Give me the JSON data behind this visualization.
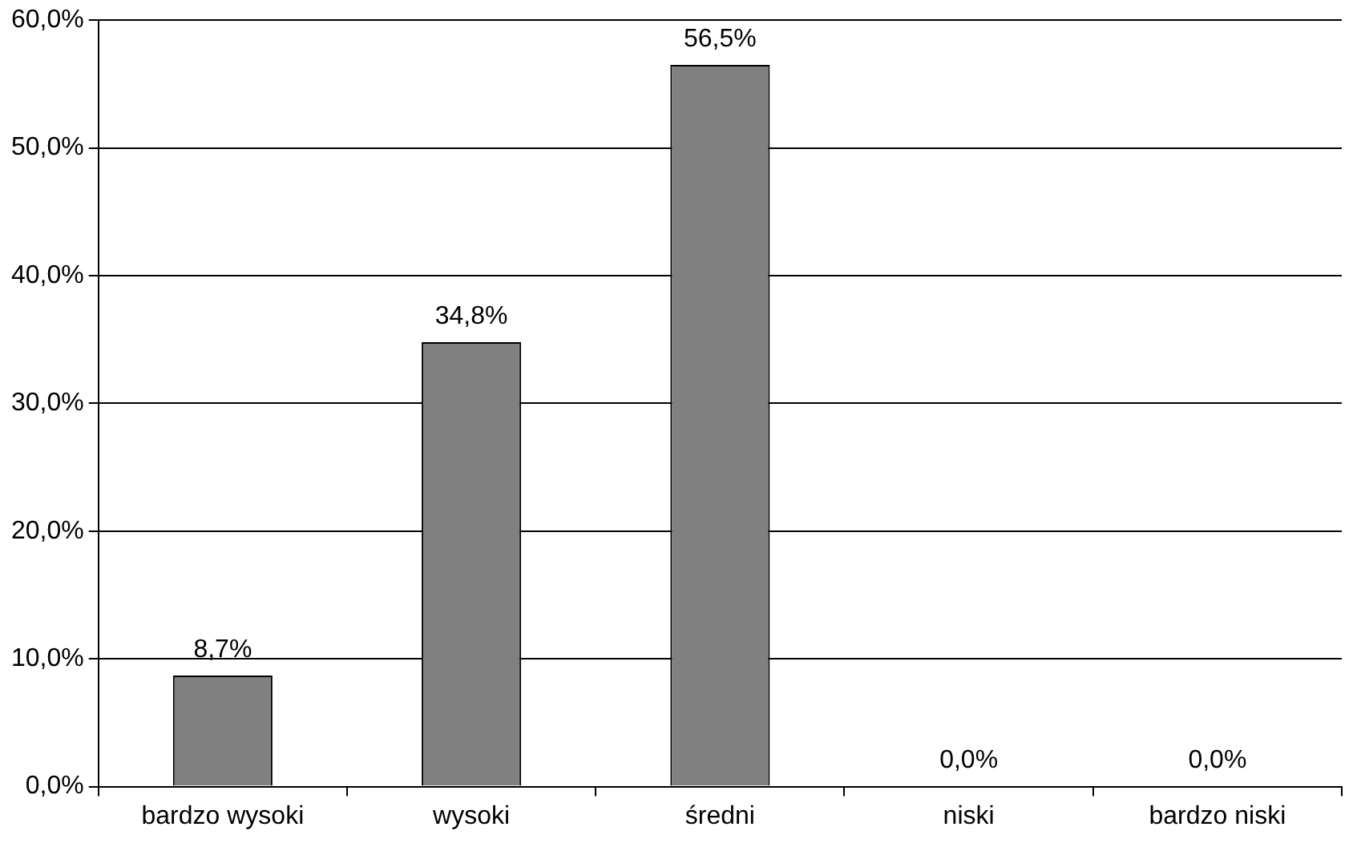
{
  "chart_data": {
    "type": "bar",
    "categories": [
      "bardzo wysoki",
      "wysoki",
      "średni",
      "niski",
      "bardzo niski"
    ],
    "values": [
      8.7,
      34.8,
      56.5,
      0.0,
      0.0
    ],
    "value_labels": [
      "8,7%",
      "34,8%",
      "56,5%",
      "0,0%",
      "0,0%"
    ],
    "color": "#808080",
    "ylim": [
      0,
      60
    ],
    "yticks": [
      {
        "value": 0,
        "label": "0,0%"
      },
      {
        "value": 10,
        "label": "10,0%"
      },
      {
        "value": 20,
        "label": "20,0%"
      },
      {
        "value": 30,
        "label": "30,0%"
      },
      {
        "value": 40,
        "label": "40,0%"
      },
      {
        "value": 50,
        "label": "50,0%"
      },
      {
        "value": 60,
        "label": "60,0%"
      }
    ],
    "grid": "y",
    "legend": false
  }
}
